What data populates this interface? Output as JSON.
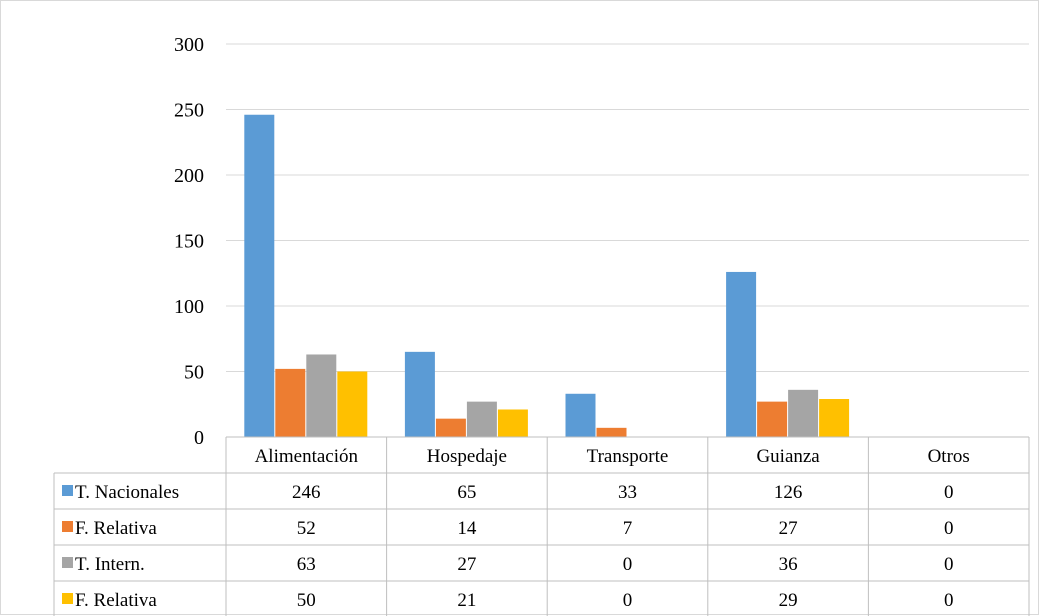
{
  "chart_data": {
    "type": "bar",
    "categories": [
      "Alimentación",
      "Hospedaje",
      "Transporte",
      "Guianza",
      "Otros"
    ],
    "series": [
      {
        "name": "T. Nacionales",
        "values": [
          246,
          65,
          33,
          126,
          0
        ],
        "color": "#5b9bd5"
      },
      {
        "name": "F. Relativa",
        "values": [
          52,
          14,
          7,
          27,
          0
        ],
        "color": "#ed7d31"
      },
      {
        "name": "T. Intern.",
        "values": [
          63,
          27,
          0,
          36,
          0
        ],
        "color": "#a5a5a5"
      },
      {
        "name": "F. Relativa",
        "values": [
          50,
          21,
          0,
          29,
          0
        ],
        "color": "#ffc000"
      }
    ],
    "yticks": [
      0,
      50,
      100,
      150,
      200,
      250,
      300
    ],
    "ylim": [
      0,
      300
    ],
    "grid": true,
    "legend": "data-table"
  },
  "colors": {
    "gridline": "#d9d9d9",
    "axis": "#bfbfbf",
    "table_border": "#bfbfbf"
  }
}
